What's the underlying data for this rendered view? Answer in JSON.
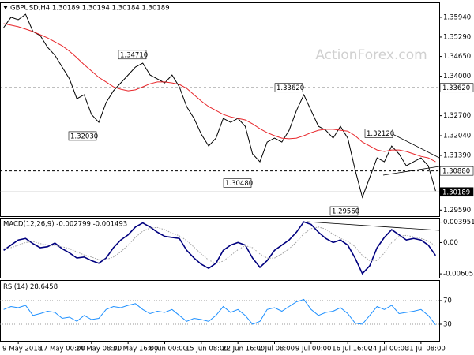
{
  "watermark": "ActionForex.com",
  "chart_data": [
    {
      "type": "line",
      "title": "GBPUSD,H4  1.30189 1.30194 1.30184 1.30189",
      "categories": [
        null,
        null,
        "9 May 2018",
        null,
        null,
        null,
        null,
        "17 May 00:00",
        null,
        null,
        null,
        null,
        "24 May 08:00",
        null,
        null,
        null,
        null,
        "31 May 16:00",
        null,
        null,
        null,
        null,
        "8 Jun 00:00",
        null,
        null,
        null,
        null,
        "15 Jun 08:00",
        null,
        null,
        null,
        null,
        "22 Jun 16:00",
        null,
        null,
        null,
        null,
        "2 Jul 08:00",
        null,
        null,
        null,
        null,
        "9 Jul 00:00",
        null,
        null,
        null,
        null,
        "16 Jul 16:00",
        null,
        null,
        null,
        null,
        "24 Jul 00:00",
        null,
        null,
        null,
        null,
        "31 Jul 08:00",
        null,
        null
      ],
      "series": [
        {
          "color": "#000000",
          "values": [
            1.356,
            1.3594,
            1.3586,
            1.3604,
            1.3547,
            1.3534,
            1.3495,
            1.3469,
            1.343,
            1.3391,
            1.3326,
            1.3339,
            1.3274,
            1.3248,
            1.3313,
            1.3352,
            1.3378,
            1.3404,
            1.343,
            1.3443,
            1.3404,
            1.3391,
            1.3378,
            1.3404,
            1.3365,
            1.33,
            1.3261,
            1.3209,
            1.317,
            1.3196,
            1.3261,
            1.3248,
            1.3261,
            1.3235,
            1.3144,
            1.3118,
            1.3183,
            1.3196,
            1.3183,
            1.3222,
            1.3287,
            1.3339,
            1.3287,
            1.3235,
            1.3222,
            1.3196,
            1.3235,
            1.3196,
            1.3092,
            1.3001,
            1.3066,
            1.3131,
            1.3118,
            1.317,
            1.3144,
            1.3105,
            1.3118,
            1.3131,
            1.3105,
            1.3022
          ]
        },
        {
          "color": "#e8262a",
          "values": [
            1.3573,
            1.3568,
            1.3563,
            1.3555,
            1.3547,
            1.3537,
            1.3526,
            1.3513,
            1.35,
            1.3482,
            1.3461,
            1.3438,
            1.3417,
            1.3396,
            1.3381,
            1.3365,
            1.3357,
            1.3352,
            1.3355,
            1.3365,
            1.3375,
            1.3381,
            1.3381,
            1.3378,
            1.3373,
            1.336,
            1.3339,
            1.3318,
            1.33,
            1.3287,
            1.3274,
            1.3266,
            1.3261,
            1.3256,
            1.3243,
            1.3227,
            1.3214,
            1.3204,
            1.3196,
            1.3194,
            1.3196,
            1.3204,
            1.3214,
            1.3222,
            1.3225,
            1.3225,
            1.3222,
            1.3219,
            1.3204,
            1.3183,
            1.317,
            1.3157,
            1.3152,
            1.3157,
            1.3157,
            1.3152,
            1.3144,
            1.3136,
            1.3131,
            1.3118
          ]
        }
      ],
      "ylim": [
        1.2939,
        1.3638
      ],
      "yticks": [
        {
          "value": 1.3594,
          "label": "1.35940"
        },
        {
          "value": 1.3529,
          "label": "1.35290"
        },
        {
          "value": 1.3465,
          "label": "1.34650"
        },
        {
          "value": 1.34,
          "label": "1.34000"
        },
        {
          "value": 1.327,
          "label": "1.32700"
        },
        {
          "value": 1.3204,
          "label": "1.32040"
        },
        {
          "value": 1.3139,
          "label": "1.31390"
        },
        {
          "value": 1.2959,
          "label": "1.29590"
        }
      ],
      "levels": [
        {
          "value": 1.3362,
          "label": "1.33620",
          "style": "dashed"
        },
        {
          "value": 1.3088,
          "label": "1.30880",
          "style": "dashed"
        },
        {
          "value": 1.30189,
          "label": "1.30189",
          "style": "solid"
        }
      ],
      "annotations": [
        {
          "value": 1.3471,
          "label": "1.34710"
        },
        {
          "value": 1.3362,
          "label": "1.33620"
        },
        {
          "value": 1.3203,
          "label": "1.32030"
        },
        {
          "value": 1.3048,
          "label": "1.30480"
        },
        {
          "value": 1.3212,
          "label": "1.32120"
        },
        {
          "value": 1.2956,
          "label": "1.29560"
        }
      ]
    },
    {
      "type": "line",
      "title": "MACD(12,26,9) -0.002799 -0.001493",
      "series": [
        {
          "color": "#00007f",
          "values": [
            -0.0015,
            -0.0005,
            0.0005,
            0.0008,
            -0.0002,
            -0.001,
            -0.0008,
            -0.0001,
            -0.0012,
            -0.002,
            -0.003,
            -0.0028,
            -0.0035,
            -0.004,
            -0.003,
            -0.001,
            0.0005,
            0.0015,
            0.003,
            0.0038,
            0.003,
            0.002,
            0.0012,
            0.001,
            0.0008,
            -0.0015,
            -0.003,
            -0.0042,
            -0.005,
            -0.004,
            -0.0015,
            -0.0005,
            0.0,
            -0.0005,
            -0.003,
            -0.0048,
            -0.0035,
            -0.0015,
            -0.0005,
            0.0005,
            0.002,
            0.004,
            0.0035,
            0.002,
            0.0008,
            0.0,
            0.0005,
            -0.0005,
            -0.003,
            -0.006,
            -0.0045,
            -0.001,
            0.001,
            0.0025,
            0.0015,
            0.0005,
            0.0008,
            0.0005,
            -0.0005,
            -0.0025
          ]
        },
        {
          "color": "#a0a0a0",
          "style": "dotted",
          "values": [
            -0.0012,
            -0.001,
            -0.0005,
            0.0,
            0.0002,
            -0.0002,
            -0.0005,
            -0.0006,
            -0.0008,
            -0.0012,
            -0.0018,
            -0.0024,
            -0.0028,
            -0.0033,
            -0.0033,
            -0.0028,
            -0.0018,
            -0.0005,
            0.001,
            0.0022,
            0.0028,
            0.0029,
            0.0025,
            0.0018,
            0.0013,
            0.0004,
            -0.0009,
            -0.0022,
            -0.0034,
            -0.004,
            -0.0036,
            -0.0025,
            -0.0014,
            -0.0006,
            -0.001,
            -0.0022,
            -0.003,
            -0.003,
            -0.0022,
            -0.0012,
            0.0001,
            0.0017,
            0.0027,
            0.003,
            0.0026,
            0.0016,
            0.0008,
            0.0002,
            -0.0008,
            -0.0025,
            -0.0035,
            -0.0035,
            -0.002,
            0.0,
            0.0012,
            0.0014,
            0.0011,
            0.0008,
            0.0003,
            -0.0007
          ]
        }
      ],
      "ylim": [
        -0.0068,
        0.0048
      ],
      "yticks": [
        0.003951,
        {
          "value": 0,
          "label": "0.00"
        },
        -0.006055
      ]
    },
    {
      "type": "line",
      "title": "RSI(14) 28.6458",
      "series": [
        {
          "color": "#1e90ff",
          "values": [
            55,
            60,
            58,
            62,
            45,
            48,
            52,
            50,
            40,
            42,
            35,
            45,
            38,
            40,
            55,
            60,
            58,
            62,
            65,
            55,
            48,
            52,
            50,
            55,
            45,
            35,
            40,
            38,
            35,
            45,
            60,
            50,
            55,
            45,
            30,
            35,
            55,
            58,
            52,
            60,
            68,
            72,
            55,
            45,
            50,
            52,
            58,
            48,
            32,
            30,
            45,
            60,
            55,
            62,
            48,
            50,
            52,
            55,
            45,
            29
          ]
        }
      ],
      "ylim": [
        0,
        100
      ],
      "yticks": [
        70,
        30
      ],
      "grid": "dotted"
    }
  ]
}
